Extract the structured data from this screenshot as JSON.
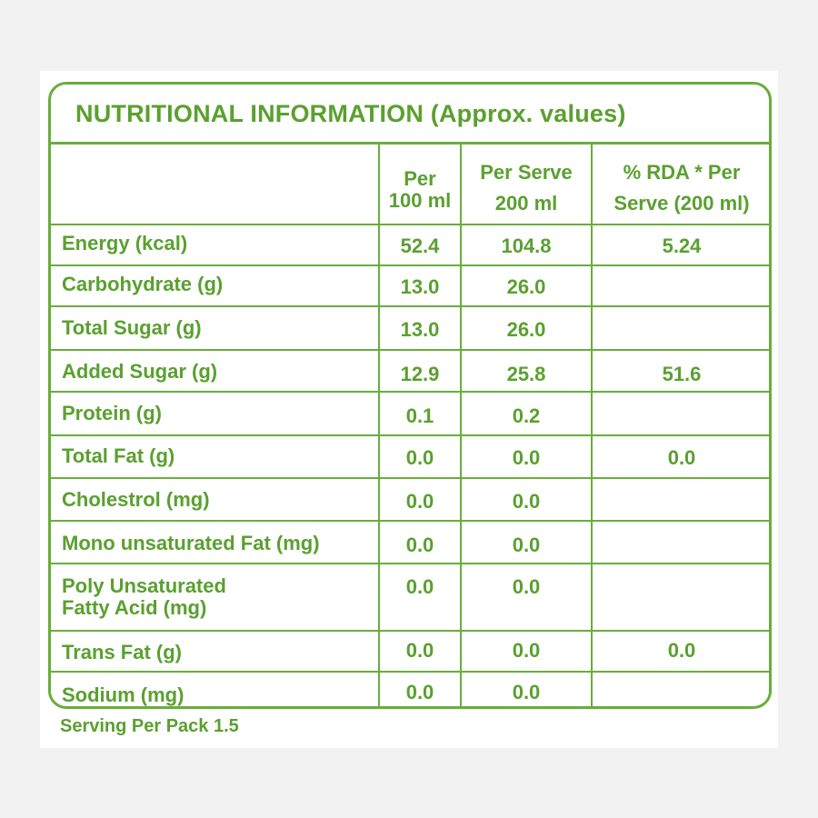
{
  "title": "NUTRITIONAL INFORMATION (Approx. values)",
  "headers": {
    "per_100_line1": "Per",
    "per_100_line2": "100 ml",
    "per_serve_line1": "Per Serve",
    "per_serve_line2": "200 ml",
    "rda_line1": "% RDA * Per",
    "rda_line2": "Serve (200 ml)"
  },
  "rows": [
    {
      "nutrient": "Energy (kcal)",
      "per100": "52.4",
      "perServe": "104.8",
      "rda": "5.24"
    },
    {
      "nutrient": "Carbohydrate (g)",
      "per100": "13.0",
      "perServe": "26.0",
      "rda": ""
    },
    {
      "nutrient": "Total Sugar (g)",
      "per100": "13.0",
      "perServe": "26.0",
      "rda": ""
    },
    {
      "nutrient": "Added Sugar (g)",
      "per100": "12.9",
      "perServe": "25.8",
      "rda": "51.6"
    },
    {
      "nutrient": "Protein (g)",
      "per100": "0.1",
      "perServe": "0.2",
      "rda": ""
    },
    {
      "nutrient": "Total Fat (g)",
      "per100": "0.0",
      "perServe": "0.0",
      "rda": "0.0"
    },
    {
      "nutrient": "Cholestrol (mg)",
      "per100": "0.0",
      "perServe": "0.0",
      "rda": ""
    },
    {
      "nutrient": "Mono unsaturated Fat (mg)",
      "per100": "0.0",
      "perServe": "0.0",
      "rda": ""
    },
    {
      "nutrient_line1": "Poly Unsaturated",
      "nutrient_line2": "Fatty Acid (mg)",
      "per100": "0.0",
      "perServe": "0.0",
      "rda": ""
    },
    {
      "nutrient": "Trans Fat (g)",
      "per100": "0.0",
      "perServe": "0.0",
      "rda": "0.0"
    },
    {
      "nutrient": "Sodium (mg)",
      "per100": "0.0",
      "perServe": "0.0",
      "rda": ""
    }
  ],
  "footer": "Serving Per Pack 1.5",
  "colors": {
    "accent_green": "#5aa02f",
    "border_green": "#69ad3a",
    "background": "#f2f2f2",
    "card": "#ffffff"
  }
}
